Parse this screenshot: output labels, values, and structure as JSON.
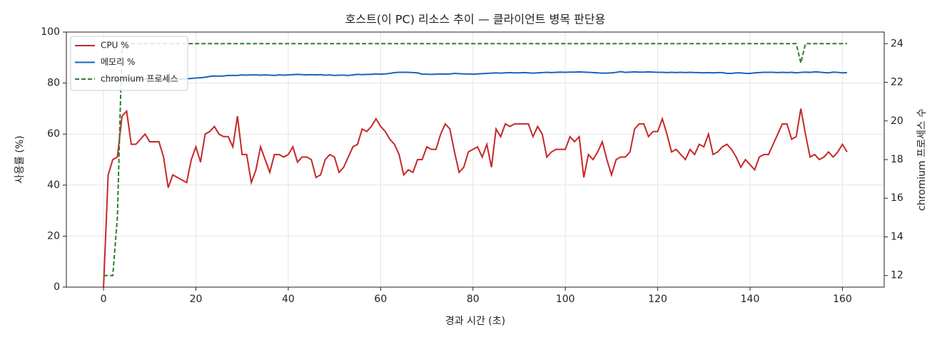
{
  "chart_data": {
    "type": "line",
    "title": "호스트(이 PC) 리소스 추이 — 클라이언트 병목 판단용",
    "x_label": "경과 시간 (초)",
    "y_label": "사용률 (%)",
    "y2_label": "chromium 프로세스 수",
    "x": [
      0,
      1,
      2,
      3,
      4,
      5,
      6,
      7,
      8,
      9,
      10,
      11,
      12,
      13,
      14,
      15,
      16,
      17,
      18,
      19,
      20,
      21,
      22,
      23,
      24,
      25,
      26,
      27,
      28,
      29,
      30,
      31,
      32,
      33,
      34,
      35,
      36,
      37,
      38,
      39,
      40,
      41,
      42,
      43,
      44,
      45,
      46,
      47,
      48,
      49,
      50,
      51,
      52,
      53,
      54,
      55,
      56,
      57,
      58,
      59,
      60,
      61,
      62,
      63,
      64,
      65,
      66,
      67,
      68,
      69,
      70,
      71,
      72,
      73,
      74,
      75,
      76,
      77,
      78,
      79,
      80,
      81,
      82,
      83,
      84,
      85,
      86,
      87,
      88,
      89,
      90,
      91,
      92,
      93,
      94,
      95,
      96,
      97,
      98,
      99,
      100,
      101,
      102,
      103,
      104,
      105,
      106,
      107,
      108,
      109,
      110,
      111,
      112,
      113,
      114,
      115,
      116,
      117,
      118,
      119,
      120,
      121,
      122,
      123,
      124,
      125,
      126,
      127,
      128,
      129,
      130,
      131,
      132,
      133,
      134,
      135,
      136,
      137,
      138,
      139,
      140,
      141,
      142,
      143,
      144,
      145,
      146,
      147,
      148,
      149,
      150,
      151,
      152,
      153,
      154,
      155,
      156,
      157,
      158,
      159,
      160,
      161
    ],
    "series": [
      {
        "name": "CPU %",
        "color": "#c62828",
        "linestyle": "solid",
        "axis": "y",
        "values": [
          0,
          44,
          50,
          51,
          67,
          69,
          56,
          56,
          58,
          60,
          57,
          57,
          57,
          51,
          39,
          44,
          43,
          42,
          41,
          50,
          55,
          49,
          60,
          61,
          63,
          60,
          59,
          59,
          55,
          67,
          52,
          52,
          41,
          46,
          55,
          50,
          45,
          52,
          52,
          51,
          52,
          55,
          49,
          51,
          51,
          50,
          43,
          44,
          50,
          52,
          51,
          45,
          47,
          51,
          55,
          56,
          62,
          61,
          63,
          66,
          63,
          61,
          58,
          56,
          52,
          44,
          46,
          45,
          50,
          50,
          55,
          54,
          54,
          60,
          64,
          62,
          53,
          45,
          47,
          53,
          54,
          55,
          51,
          56,
          47,
          62,
          59,
          64,
          63,
          64,
          64,
          64,
          64,
          59,
          63,
          60,
          51,
          53,
          54,
          54,
          54,
          59,
          57,
          59,
          43,
          52,
          50,
          53,
          57,
          50,
          44,
          50,
          51,
          51,
          53,
          62,
          64,
          64,
          59,
          61,
          61,
          66,
          60,
          53,
          54,
          52,
          50,
          54,
          52,
          56,
          55,
          60,
          52,
          53,
          55,
          56,
          54,
          51,
          47,
          50,
          48,
          46,
          51,
          52,
          52,
          56,
          60,
          64,
          64,
          58,
          59,
          70,
          60,
          51,
          52,
          50,
          51,
          53,
          51,
          53,
          56,
          53
        ]
      },
      {
        "name": "메모리 %",
        "color": "#1565c0",
        "linestyle": "solid",
        "axis": "y",
        "values": [
          80.5,
          80.8,
          81.0,
          81.2,
          81.3,
          81.4,
          81.5,
          81.5,
          81.6,
          81.5,
          81.6,
          81.5,
          81.6,
          81.5,
          81.4,
          81.6,
          81.5,
          81.6,
          81.7,
          81.8,
          82.0,
          82.1,
          82.3,
          82.6,
          82.8,
          82.7,
          82.8,
          83.0,
          83.0,
          83.0,
          83.2,
          83.1,
          83.2,
          83.2,
          83.1,
          83.2,
          83.1,
          83.0,
          83.2,
          83.1,
          83.2,
          83.3,
          83.4,
          83.3,
          83.2,
          83.3,
          83.2,
          83.3,
          83.1,
          83.2,
          83.0,
          83.1,
          83.1,
          83.0,
          83.2,
          83.4,
          83.3,
          83.4,
          83.4,
          83.6,
          83.5,
          83.6,
          83.8,
          84.1,
          84.2,
          84.2,
          84.2,
          84.1,
          84.0,
          83.5,
          83.5,
          83.4,
          83.5,
          83.6,
          83.5,
          83.6,
          83.8,
          83.7,
          83.6,
          83.6,
          83.5,
          83.6,
          83.7,
          83.8,
          83.9,
          84.0,
          83.9,
          84.0,
          84.1,
          84.0,
          84.0,
          84.1,
          84.0,
          83.9,
          84.0,
          84.1,
          84.2,
          84.1,
          84.2,
          84.3,
          84.2,
          84.3,
          84.3,
          84.4,
          84.3,
          84.2,
          84.1,
          84.0,
          83.9,
          83.9,
          84.0,
          84.2,
          84.5,
          84.2,
          84.3,
          84.4,
          84.3,
          84.3,
          84.4,
          84.3,
          84.2,
          84.2,
          84.1,
          84.2,
          84.1,
          84.2,
          84.1,
          84.2,
          84.1,
          84.1,
          84.0,
          84.1,
          84.0,
          84.1,
          84.1,
          83.8,
          83.8,
          84.0,
          84.0,
          83.8,
          83.8,
          84.0,
          84.1,
          84.2,
          84.2,
          84.2,
          84.1,
          84.2,
          84.1,
          84.2,
          84.0,
          84.2,
          84.3,
          84.2,
          84.4,
          84.3,
          84.1,
          84.0,
          84.3,
          84.2,
          84.0,
          84.1
        ]
      },
      {
        "name": "chromium 프로세스",
        "color": "#2e7d32",
        "linestyle": "dashed",
        "axis": "y2",
        "values": [
          12,
          12,
          12,
          15,
          24,
          24,
          24,
          24,
          24,
          24,
          24,
          24,
          24,
          24,
          24,
          24,
          24,
          24,
          24,
          24,
          24,
          24,
          24,
          24,
          24,
          24,
          24,
          24,
          24,
          24,
          24,
          24,
          24,
          24,
          24,
          24,
          24,
          24,
          24,
          24,
          24,
          24,
          24,
          24,
          24,
          24,
          24,
          24,
          24,
          24,
          24,
          24,
          24,
          24,
          24,
          24,
          24,
          24,
          24,
          24,
          24,
          24,
          24,
          24,
          24,
          24,
          24,
          24,
          24,
          24,
          24,
          24,
          24,
          24,
          24,
          24,
          24,
          24,
          24,
          24,
          24,
          24,
          24,
          24,
          24,
          24,
          24,
          24,
          24,
          24,
          24,
          24,
          24,
          24,
          24,
          24,
          24,
          24,
          24,
          24,
          24,
          24,
          24,
          24,
          24,
          24,
          24,
          24,
          24,
          24,
          24,
          24,
          24,
          24,
          24,
          24,
          24,
          24,
          24,
          24,
          24,
          24,
          24,
          24,
          24,
          24,
          24,
          24,
          24,
          24,
          24,
          24,
          24,
          24,
          24,
          24,
          24,
          24,
          24,
          24,
          24,
          24,
          24,
          24,
          24,
          24,
          24,
          24,
          24,
          24,
          24,
          23,
          24,
          24,
          24,
          24,
          24,
          24,
          24,
          24,
          24,
          24
        ]
      }
    ],
    "xlim": [
      -8.05,
      169.05
    ],
    "xticks": [
      0,
      20,
      40,
      60,
      80,
      100,
      120,
      140,
      160
    ],
    "ylim": [
      0,
      100
    ],
    "yticks": [
      0,
      20,
      40,
      60,
      80,
      100
    ],
    "y2lim": [
      11.4,
      24.6
    ],
    "y2ticks": [
      12,
      14,
      16,
      18,
      20,
      22,
      24
    ],
    "grid": true,
    "legend": "upper left"
  }
}
